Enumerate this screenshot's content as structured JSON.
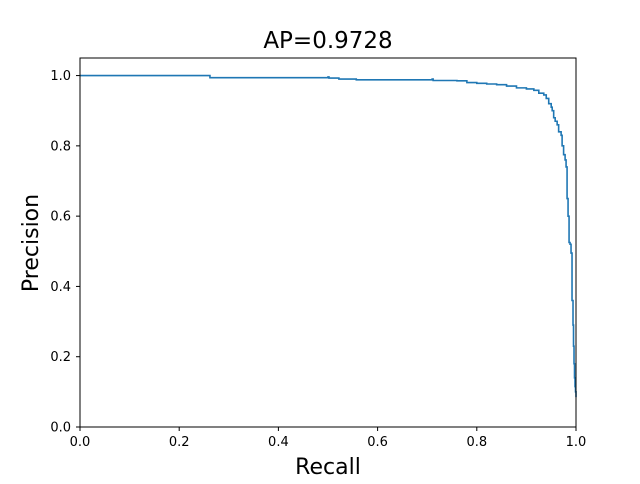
{
  "chart_data": {
    "type": "line",
    "title": "AP=0.9728",
    "xlabel": "Recall",
    "ylabel": "Precision",
    "xlim": [
      0.0,
      1.0
    ],
    "ylim": [
      0.0,
      1.05
    ],
    "xticks": [
      0.0,
      0.2,
      0.4,
      0.6,
      0.8,
      1.0
    ],
    "yticks": [
      0.0,
      0.2,
      0.4,
      0.6,
      0.8,
      1.0
    ],
    "xtick_labels": [
      "0.0",
      "0.2",
      "0.4",
      "0.6",
      "0.8",
      "1.0"
    ],
    "ytick_labels": [
      "0.0",
      "0.2",
      "0.4",
      "0.6",
      "0.8",
      "1.0"
    ],
    "grid": false,
    "line_color": "#1f77b4",
    "series": [
      {
        "x": [
          0.0,
          0.26,
          0.262,
          0.5,
          0.502,
          0.52,
          0.522,
          0.555,
          0.557,
          0.71,
          0.712,
          0.76,
          0.78,
          0.8,
          0.82,
          0.84,
          0.86,
          0.88,
          0.9,
          0.915,
          0.925,
          0.935,
          0.94,
          0.945,
          0.95,
          0.952,
          0.955,
          0.958,
          0.962,
          0.965,
          0.97,
          0.972,
          0.975,
          0.978,
          0.98,
          0.982,
          0.984,
          0.986,
          0.988,
          0.99,
          0.992,
          0.994,
          0.995,
          0.996,
          0.997,
          0.998,
          0.999,
          1.0
        ],
        "y": [
          1.0,
          1.0,
          0.994,
          0.996,
          0.993,
          0.993,
          0.99,
          0.99,
          0.988,
          0.99,
          0.986,
          0.985,
          0.98,
          0.978,
          0.976,
          0.974,
          0.97,
          0.965,
          0.962,
          0.958,
          0.95,
          0.945,
          0.935,
          0.92,
          0.91,
          0.9,
          0.88,
          0.87,
          0.86,
          0.84,
          0.83,
          0.8,
          0.775,
          0.76,
          0.74,
          0.65,
          0.6,
          0.525,
          0.52,
          0.495,
          0.36,
          0.29,
          0.23,
          0.18,
          0.14,
          0.115,
          0.1,
          0.085
        ]
      }
    ]
  }
}
